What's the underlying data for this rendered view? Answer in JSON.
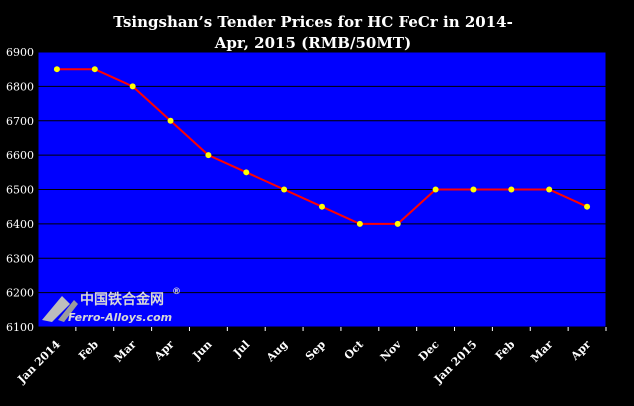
{
  "chart_data": {
    "type": "line",
    "title_line1": "Tsingshan’s Tender Prices for HC FeCr in 2014-",
    "title_line2": "Apr, 2015 (RMB/50MT)",
    "categories": [
      "Jan 2014",
      "Feb",
      "Mar",
      "Apr",
      "Jun",
      "Jul",
      "Aug",
      "Sep",
      "Oct",
      "Nov",
      "Dec",
      "Jan 2015",
      "Feb",
      "Mar",
      "Apr"
    ],
    "series": [
      {
        "values": [
          6850,
          6850,
          6800,
          6700,
          6600,
          6550,
          6500,
          6450,
          6400,
          6400,
          6500,
          6500,
          6500,
          6500,
          6450
        ]
      }
    ],
    "ylim": [
      6100,
      6900
    ],
    "yticks": [
      6100,
      6200,
      6300,
      6400,
      6500,
      6600,
      6700,
      6800,
      6900
    ],
    "grid": true,
    "legend": "none",
    "colors": {
      "background": "#000000",
      "plot_area": "#0000ff",
      "line": "#ff0000",
      "marker": "#ffff00",
      "grid": "#000000",
      "text": "#ffffff"
    }
  },
  "watermark": {
    "cn": "中国铁合金网",
    "en": "Ferro-Alloys.com",
    "registered": "®"
  }
}
